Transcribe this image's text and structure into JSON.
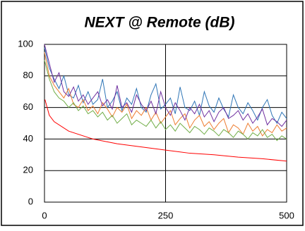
{
  "chart_data": {
    "type": "line",
    "title": "NEXT @ Remote (dB)",
    "x": [
      0,
      10,
      20,
      30,
      40,
      50,
      60,
      70,
      80,
      90,
      100,
      110,
      120,
      130,
      140,
      150,
      160,
      170,
      180,
      190,
      200,
      210,
      220,
      230,
      240,
      250,
      260,
      270,
      280,
      290,
      300,
      310,
      320,
      330,
      340,
      350,
      360,
      370,
      380,
      390,
      400,
      410,
      420,
      430,
      440,
      450,
      460,
      470,
      480,
      490,
      500
    ],
    "series": [
      {
        "color": "#2e75b6",
        "values": [
          98,
          85,
          78,
          72,
          80,
          68,
          66,
          74,
          63,
          70,
          62,
          65,
          78,
          60,
          64,
          70,
          58,
          66,
          62,
          72,
          60,
          57,
          68,
          75,
          59,
          62,
          66,
          56,
          73,
          60,
          58,
          64,
          55,
          70,
          61,
          57,
          66,
          59,
          54,
          68,
          60,
          56,
          63,
          58,
          52,
          60,
          65,
          55,
          50,
          57,
          53
        ]
      },
      {
        "color": "#ed7d31",
        "values": [
          95,
          80,
          74,
          70,
          66,
          72,
          62,
          60,
          65,
          58,
          61,
          56,
          63,
          59,
          54,
          60,
          57,
          62,
          53,
          58,
          55,
          60,
          52,
          57,
          50,
          54,
          58,
          49,
          53,
          56,
          47,
          52,
          55,
          48,
          51,
          46,
          50,
          53,
          44,
          49,
          47,
          43,
          50,
          45,
          48,
          42,
          46,
          44,
          49,
          45,
          47
        ]
      },
      {
        "color": "#7030a0",
        "values": [
          100,
          88,
          76,
          82,
          70,
          67,
          73,
          64,
          68,
          62,
          66,
          70,
          61,
          65,
          59,
          74,
          60,
          63,
          57,
          68,
          62,
          58,
          64,
          56,
          70,
          60,
          55,
          63,
          58,
          52,
          60,
          56,
          62,
          54,
          58,
          51,
          57,
          60,
          53,
          55,
          58,
          52,
          56,
          50,
          54,
          59,
          49,
          53,
          51,
          48,
          52
        ]
      },
      {
        "color": "#70ad47",
        "values": [
          90,
          78,
          70,
          66,
          64,
          60,
          63,
          58,
          61,
          56,
          58,
          54,
          57,
          52,
          55,
          50,
          53,
          56,
          49,
          52,
          50,
          48,
          52,
          47,
          51,
          46,
          49,
          45,
          50,
          47,
          44,
          48,
          46,
          43,
          47,
          45,
          42,
          46,
          44,
          41,
          45,
          43,
          40,
          44,
          42,
          46,
          41,
          43,
          39,
          42,
          40
        ]
      },
      {
        "color": "#ff0000",
        "x": [
          1,
          10,
          20,
          50,
          100,
          150,
          200,
          250,
          300,
          350,
          400,
          450,
          500
        ],
        "values": [
          65,
          55,
          51,
          45,
          40,
          37,
          35,
          33,
          31,
          30,
          28.5,
          27.5,
          26
        ]
      }
    ],
    "xlim": [
      0,
      500
    ],
    "xticks": [
      0,
      250,
      500
    ],
    "ylim": [
      0,
      100
    ],
    "yticks": [
      0,
      20,
      40,
      60,
      80,
      100
    ],
    "grid": true
  }
}
